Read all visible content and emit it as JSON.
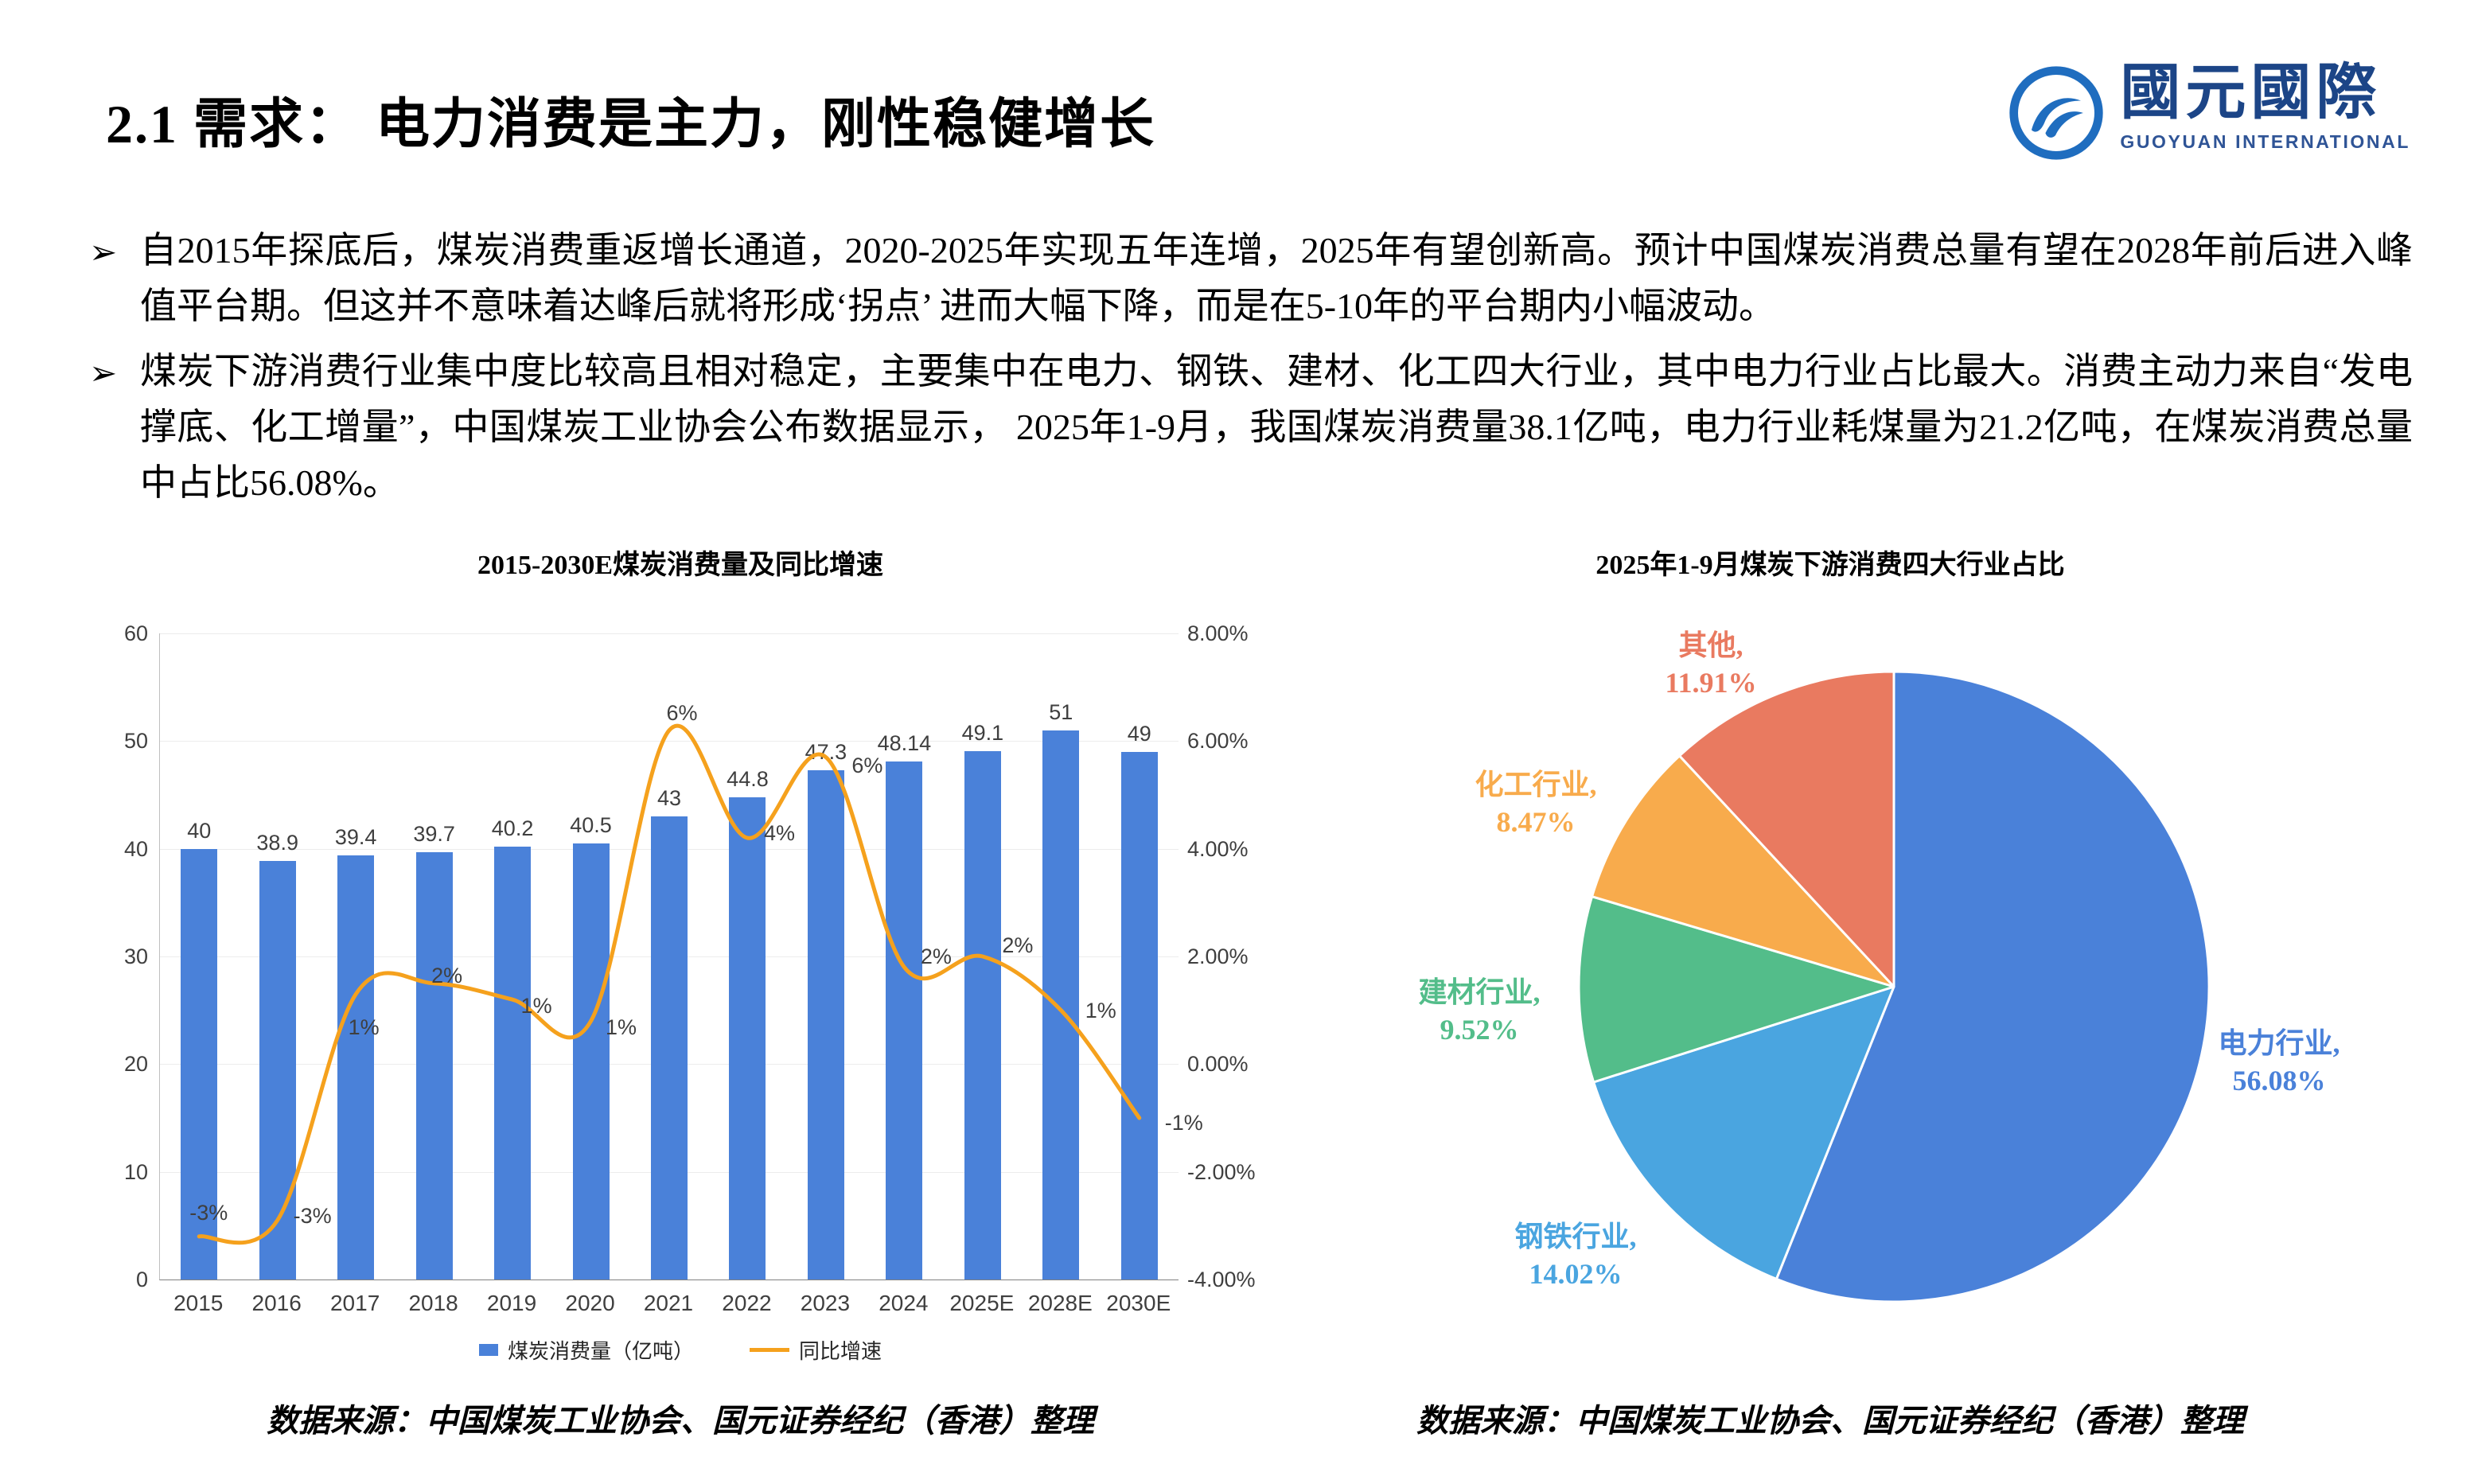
{
  "page": {
    "title": "2.1 需求： 电力消费是主力，刚性稳健增长"
  },
  "logo": {
    "cn": "國元國際",
    "en": "GUOYUAN INTERNATIONAL"
  },
  "bullets": [
    "自2015年探底后，煤炭消费重返增长通道，2020-2025年实现五年连增，2025年有望创新高。预计中国煤炭消费总量有望在2028年前后进入峰值平台期。但这并不意味着达峰后就将形成‘拐点’ 进而大幅下降，而是在5-10年的平台期内小幅波动。",
    "煤炭下游消费行业集中度比较高且相对稳定，主要集中在电力、钢铁、建材、化工四大行业，其中电力行业占比最大。消费主动力来自“发电撑底、化工增量”，中国煤炭工业协会公布数据显示， 2025年1-9月，我国煤炭消费量38.1亿吨，电力行业耗煤量为21.2亿吨，在煤炭消费总量中占比56.08%。"
  ],
  "chart_data": [
    {
      "type": "bar",
      "subtype": "combo-bar-line",
      "title": "2015-2030E煤炭消费量及同比增速",
      "categories": [
        "2015",
        "2016",
        "2017",
        "2018",
        "2019",
        "2020",
        "2021",
        "2022",
        "2023",
        "2024",
        "2025E",
        "2028E",
        "2030E"
      ],
      "series": [
        {
          "name": "煤炭消费量（亿吨）",
          "type": "bar",
          "axis": "left",
          "color": "#4a81d9",
          "values": [
            40,
            38.9,
            39.4,
            39.7,
            40.2,
            40.5,
            43,
            44.8,
            47.3,
            48.14,
            49.1,
            51,
            49
          ],
          "labels": [
            "40",
            "38.9",
            "39.4",
            "39.7",
            "40.2",
            "40.5",
            "43",
            "44.8",
            "47.3",
            "48.14",
            "49.1",
            "51",
            "49"
          ]
        },
        {
          "name": "同比增速",
          "type": "line",
          "axis": "right",
          "color": "#f5a11d",
          "values": [
            -3.2,
            -2.9,
            1.3,
            1.5,
            1.2,
            0.8,
            6.2,
            4.2,
            5.7,
            1.8,
            2.0,
            1.0,
            -1.0
          ],
          "labels": [
            "-3%",
            "-3%",
            "1%",
            "2%",
            "1%",
            "1%",
            "6%",
            "4%",
            "6%",
            "2%",
            "2%",
            "1%",
            "-1%"
          ]
        }
      ],
      "left_axis": {
        "min": 0,
        "max": 60,
        "ticks": [
          60,
          50,
          40,
          30,
          20,
          10,
          0
        ]
      },
      "right_axis": {
        "min": -4,
        "max": 8,
        "ticks": [
          "8.00%",
          "6.00%",
          "4.00%",
          "2.00%",
          "0.00%",
          "-2.00%",
          "-4.00%"
        ]
      },
      "grid": true,
      "legend_position": "bottom",
      "source": "数据来源：中国煤炭工业协会、国元证券经纪（香港）整理"
    },
    {
      "type": "pie",
      "title": "2025年1-9月煤炭下游消费四大行业占比",
      "start_angle_deg": -90,
      "direction": "clockwise",
      "slices": [
        {
          "name": "电力行业",
          "value": 56.08,
          "label_line1": "电力行业,",
          "label_line2": "56.08%",
          "color": "#4a81d9"
        },
        {
          "name": "钢铁行业",
          "value": 14.02,
          "label_line1": "钢铁行业,",
          "label_line2": "14.02%",
          "color": "#4aa5e0"
        },
        {
          "name": "建材行业",
          "value": 9.52,
          "label_line1": "建材行业,",
          "label_line2": "9.52%",
          "color": "#53bd8a"
        },
        {
          "name": "化工行业",
          "value": 8.47,
          "label_line1": "化工行业,",
          "label_line2": "8.47%",
          "color": "#f8ab4c"
        },
        {
          "name": "其他",
          "value": 11.91,
          "label_line1": "其他,",
          "label_line2": "11.91%",
          "color": "#e97a60"
        }
      ],
      "source": "数据来源：中国煤炭工业协会、国元证券经纪（香港）整理"
    }
  ]
}
